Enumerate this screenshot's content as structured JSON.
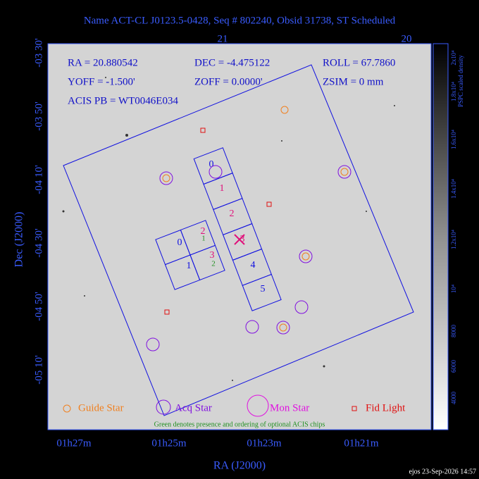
{
  "title": "Name ACT-CL J0123.5-0428, Seq # 802240, Obsid 31738, ST Scheduled",
  "info": {
    "ra": "RA = 20.880542",
    "dec": "DEC = -4.475122",
    "roll": "ROLL = 67.7860",
    "yoff": "YOFF = -1.500'",
    "zoff": "ZOFF = 0.0000'",
    "zsim": "ZSIM = 0 mm",
    "acis_pb": "ACIS PB = WT0046E034"
  },
  "top_ticks": [
    "21",
    "20"
  ],
  "left_ticks": [
    "-03 30'",
    "-03 50'",
    "-04 10'",
    "-04 30'",
    "-04 50'",
    "-05 10'"
  ],
  "bottom_ticks": [
    "01h27m",
    "01h25m",
    "01h23m",
    "01h21m"
  ],
  "x_label": "RA (J2000)",
  "y_label": "Dec (J2000)",
  "colorbar": {
    "label": "PSPC scaled density",
    "ticks": [
      "4000",
      "6000",
      "8000",
      "10⁴",
      "1.2x10⁴",
      "1.4x10⁴",
      "1.6x10⁴",
      "1.8x10⁴",
      "2x10⁴"
    ]
  },
  "chips": {
    "i": [
      "0",
      "1",
      "2",
      "3"
    ],
    "s": [
      "0",
      "1",
      "2",
      "3",
      "4",
      "5"
    ],
    "optional": [
      "1",
      "2"
    ]
  },
  "legend": [
    "Guide Star",
    "Acq Star",
    "Mon Star",
    "Fid Light"
  ],
  "note": "Green denotes presence and ordering of optional ACIS chips",
  "footer": "ejos 23-Sep-2026 14:57"
}
